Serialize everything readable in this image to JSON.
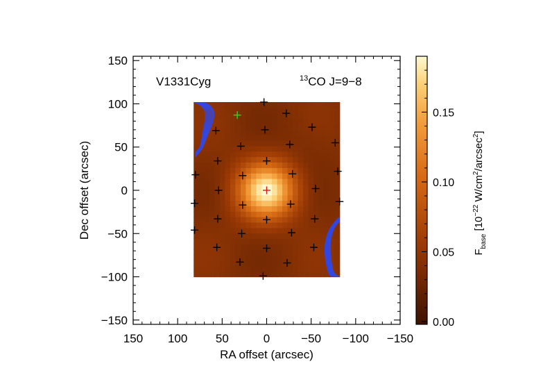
{
  "chart_data": {
    "type": "heatmap",
    "title": "",
    "object_label": "V1331Cyg",
    "line_label": {
      "sup": "13",
      "main": "CO J=9−8"
    },
    "xlabel": "RA offset (arcsec)",
    "ylabel": "Dec offset (arcsec)",
    "xlim": [
      150,
      -150
    ],
    "ylim": [
      -155,
      155
    ],
    "x_ticks": [
      150,
      100,
      50,
      0,
      -50,
      -100,
      -150
    ],
    "x_tick_labels": [
      "150",
      "100",
      "50",
      "0",
      "−50",
      "−100",
      "−150"
    ],
    "y_ticks": [
      150,
      100,
      50,
      0,
      -50,
      -100,
      -150
    ],
    "y_tick_labels": [
      "150",
      "100",
      "50",
      "0",
      "−50",
      "−100",
      "−150"
    ],
    "map_extent": {
      "ra": [
        82,
        -82
      ],
      "dec": [
        -100,
        102
      ]
    },
    "peak": {
      "ra": 0,
      "dec": 0,
      "value": 0.185,
      "sigma_arcsec": 22
    },
    "background_value": 0.04,
    "colorbar": {
      "label_main": "F",
      "label_sub": "base",
      "label_rest_1": " [10",
      "label_exp_1": "−22",
      "label_rest_2": " W/cm",
      "label_exp_2": "2",
      "label_rest_3": "/arcsec",
      "label_exp_3": "2",
      "label_rest_4": "]",
      "range": [
        -0.002,
        0.19
      ],
      "ticks": [
        0.0,
        0.05,
        0.1,
        0.15
      ],
      "tick_labels": [
        "0.00",
        "0.05",
        "0.10",
        "0.15"
      ]
    },
    "pixels": [
      {
        "ra": 0,
        "dec": 0,
        "marker": "red"
      },
      {
        "ra": 33,
        "dec": 87,
        "marker": "green"
      },
      {
        "ra": 3,
        "dec": 102,
        "marker": "black"
      },
      {
        "ra": -22,
        "dec": 89,
        "marker": "black"
      },
      {
        "ra": 57,
        "dec": 69,
        "marker": "black"
      },
      {
        "ra": 2,
        "dec": 70,
        "marker": "black"
      },
      {
        "ra": -51,
        "dec": 73,
        "marker": "black"
      },
      {
        "ra": 29,
        "dec": 51,
        "marker": "black"
      },
      {
        "ra": -26,
        "dec": 53,
        "marker": "black"
      },
      {
        "ra": -77,
        "dec": 55,
        "marker": "black"
      },
      {
        "ra": 55,
        "dec": 34,
        "marker": "black"
      },
      {
        "ra": 0,
        "dec": 34,
        "marker": "black"
      },
      {
        "ra": 80,
        "dec": 18,
        "marker": "black"
      },
      {
        "ra": 27,
        "dec": 17,
        "marker": "black"
      },
      {
        "ra": -29,
        "dec": 19,
        "marker": "black"
      },
      {
        "ra": -80,
        "dec": 22,
        "marker": "black"
      },
      {
        "ra": 54,
        "dec": 0,
        "marker": "black"
      },
      {
        "ra": -55,
        "dec": 2,
        "marker": "black"
      },
      {
        "ra": 81,
        "dec": -15,
        "marker": "black"
      },
      {
        "ra": 27,
        "dec": -17,
        "marker": "black"
      },
      {
        "ra": -27,
        "dec": -16,
        "marker": "black"
      },
      {
        "ra": -82,
        "dec": -13,
        "marker": "black"
      },
      {
        "ra": 55,
        "dec": -33,
        "marker": "black"
      },
      {
        "ra": 0,
        "dec": -34,
        "marker": "black"
      },
      {
        "ra": -54,
        "dec": -33,
        "marker": "black"
      },
      {
        "ra": 81,
        "dec": -46,
        "marker": "black"
      },
      {
        "ra": 28,
        "dec": -50,
        "marker": "black"
      },
      {
        "ra": -28,
        "dec": -49,
        "marker": "black"
      },
      {
        "ra": 56,
        "dec": -66,
        "marker": "black"
      },
      {
        "ra": 0,
        "dec": -67,
        "marker": "black"
      },
      {
        "ra": -53,
        "dec": -66,
        "marker": "black"
      },
      {
        "ra": 30,
        "dec": -83,
        "marker": "black"
      },
      {
        "ra": -23,
        "dec": -84,
        "marker": "black"
      },
      {
        "ra": 4,
        "dec": -99,
        "marker": "black"
      }
    ],
    "colors": {
      "low": "#5a2000",
      "mid": "#c95a10",
      "high": "#f4a341",
      "peak": "#fff6c8",
      "contour": "#3346e0",
      "marker_default": "#000000",
      "marker_center": "#e01818",
      "marker_offset": "#22dd22"
    }
  }
}
